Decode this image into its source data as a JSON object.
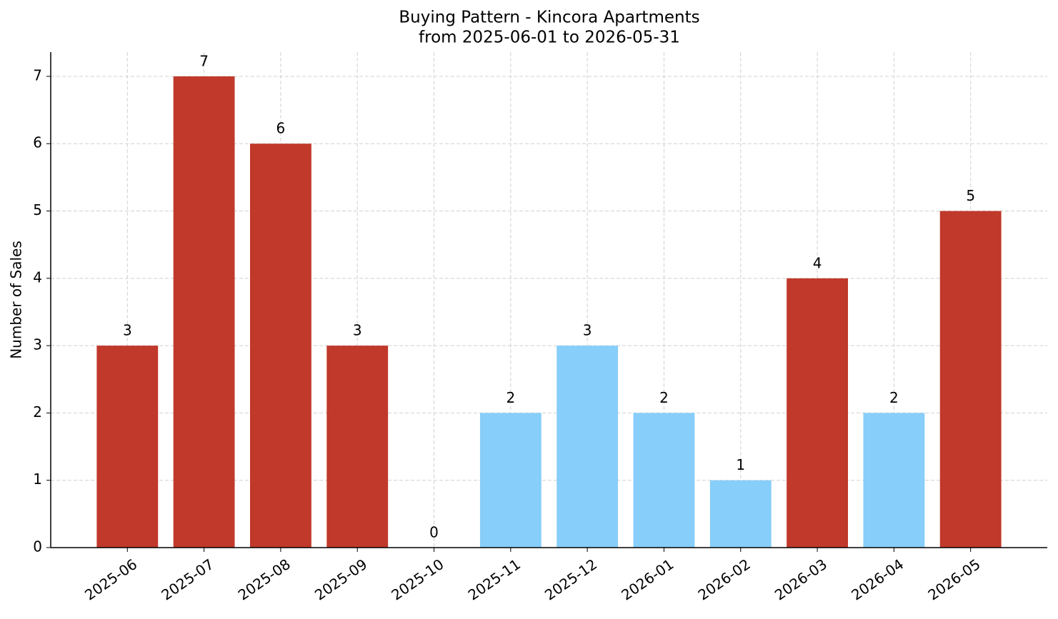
{
  "chart_data": {
    "type": "bar",
    "title": "Buying Pattern - Kincora Apartments",
    "subtitle": "from 2025-06-01 to 2026-05-31",
    "y_label": "Number of Sales",
    "categories": [
      "2025-06",
      "2025-07",
      "2025-08",
      "2025-09",
      "2025-10",
      "2025-11",
      "2025-12",
      "2026-01",
      "2026-02",
      "2026-03",
      "2026-04",
      "2026-05"
    ],
    "values": [
      3,
      7,
      6,
      3,
      0,
      2,
      3,
      2,
      1,
      4,
      2,
      5
    ],
    "colors": [
      "#c0392b",
      "#c0392b",
      "#c0392b",
      "#c0392b",
      "#87cefa",
      "#87cefa",
      "#87cefa",
      "#87cefa",
      "#87cefa",
      "#c0392b",
      "#87cefa",
      "#c0392b"
    ],
    "ylim": [
      0,
      7.36
    ],
    "yticks": [
      0,
      1,
      2,
      3,
      4,
      5,
      6,
      7
    ],
    "grid": true
  }
}
